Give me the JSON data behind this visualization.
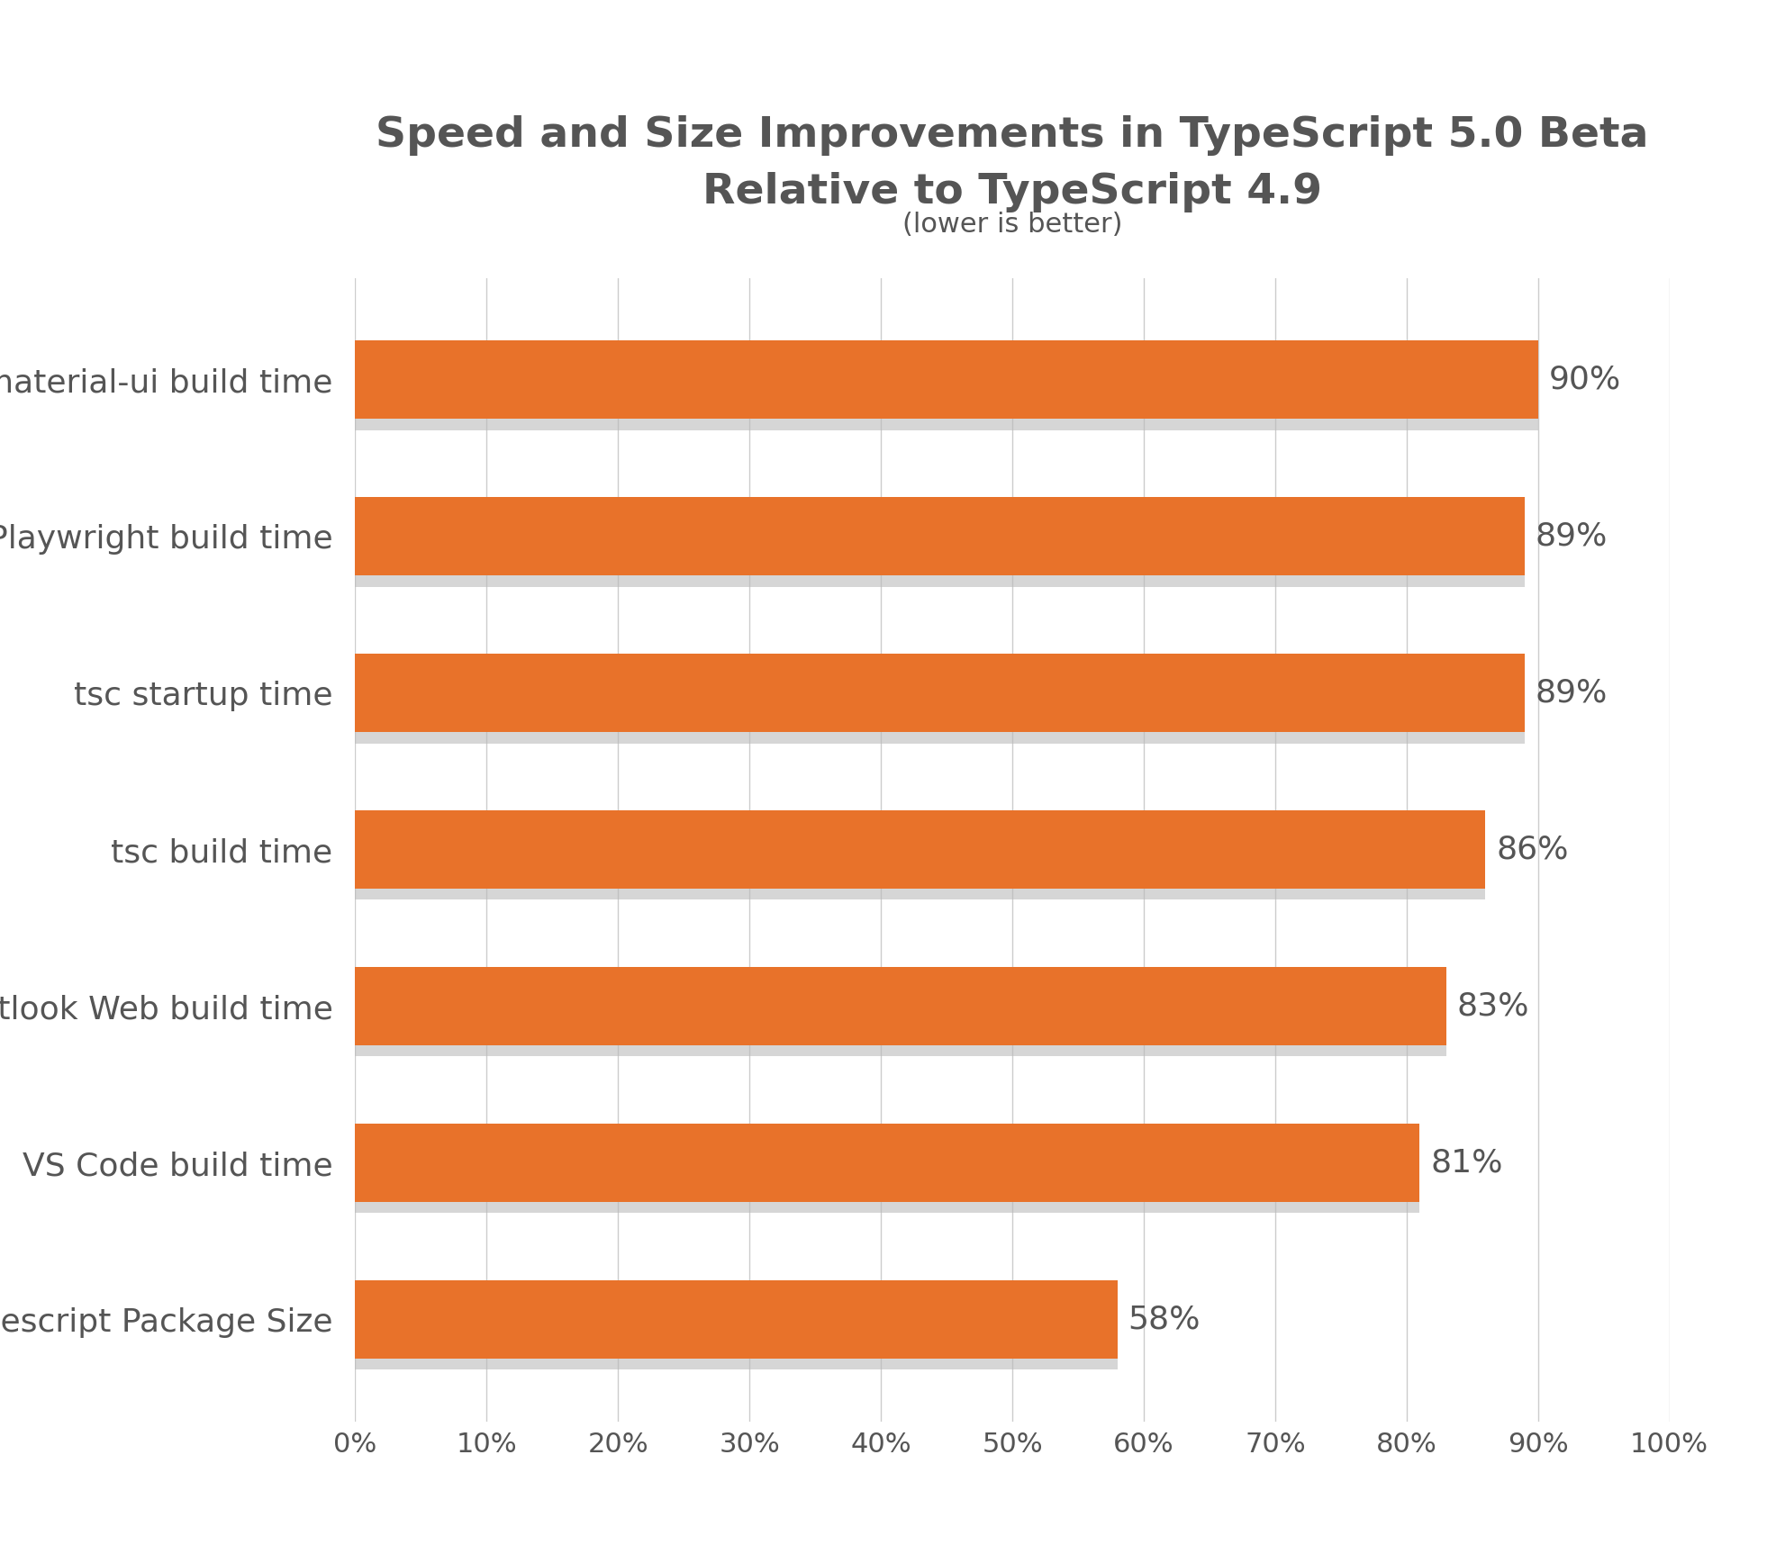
{
  "title_line1": "Speed and Size Improvements in TypeScript 5.0 Beta",
  "title_line2": "Relative to TypeScript 4.9",
  "subtitle": "(lower is better)",
  "categories": [
    "material-ui build time",
    "Playwright build time",
    "tsc startup time",
    "tsc build time",
    "Outlook Web build time",
    "VS Code build time",
    "typescript Package Size"
  ],
  "values": [
    90,
    89,
    89,
    86,
    83,
    81,
    58
  ],
  "bar_color": "#E8722A",
  "bar_shadow_color": "#bbbbbb",
  "background_color": "#ffffff",
  "text_color": "#555555",
  "grid_color": "#cccccc",
  "title_fontsize": 34,
  "subtitle_fontsize": 22,
  "label_fontsize": 26,
  "tick_fontsize": 22,
  "value_fontsize": 26,
  "xlim": [
    0,
    100
  ],
  "xticks": [
    0,
    10,
    20,
    30,
    40,
    50,
    60,
    70,
    80,
    90,
    100
  ],
  "xtick_labels": [
    "0%",
    "10%",
    "20%",
    "30%",
    "40%",
    "50%",
    "60%",
    "70%",
    "80%",
    "90%",
    "100%"
  ]
}
